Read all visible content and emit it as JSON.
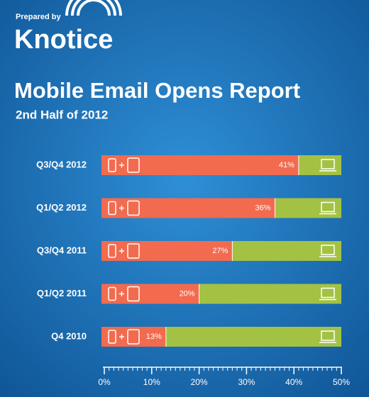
{
  "prepared_by": "Prepared by",
  "brand": "Knotice",
  "chart_data": {
    "type": "bar",
    "orientation": "horizontal",
    "title": "Mobile Email Opens Report",
    "subtitle": "2nd Half of 2012",
    "categories": [
      "Q3/Q4 2012",
      "Q1/Q2 2012",
      "Q3/Q4 2011",
      "Q1/Q2 2011",
      "Q4 2010"
    ],
    "values": [
      41,
      36,
      27,
      20,
      13
    ],
    "value_labels": [
      "41%",
      "36%",
      "27%",
      "20%",
      "13%"
    ],
    "color": "#f26b4f",
    "xlim": [
      0,
      50
    ],
    "xticks": [
      {
        "value": 0,
        "label": "0%"
      },
      {
        "value": 10,
        "label": "10%"
      },
      {
        "value": 20,
        "label": "20%"
      },
      {
        "value": 30,
        "label": "30%"
      },
      {
        "value": 40,
        "label": "40%"
      },
      {
        "value": 50,
        "label": "50%"
      }
    ]
  }
}
